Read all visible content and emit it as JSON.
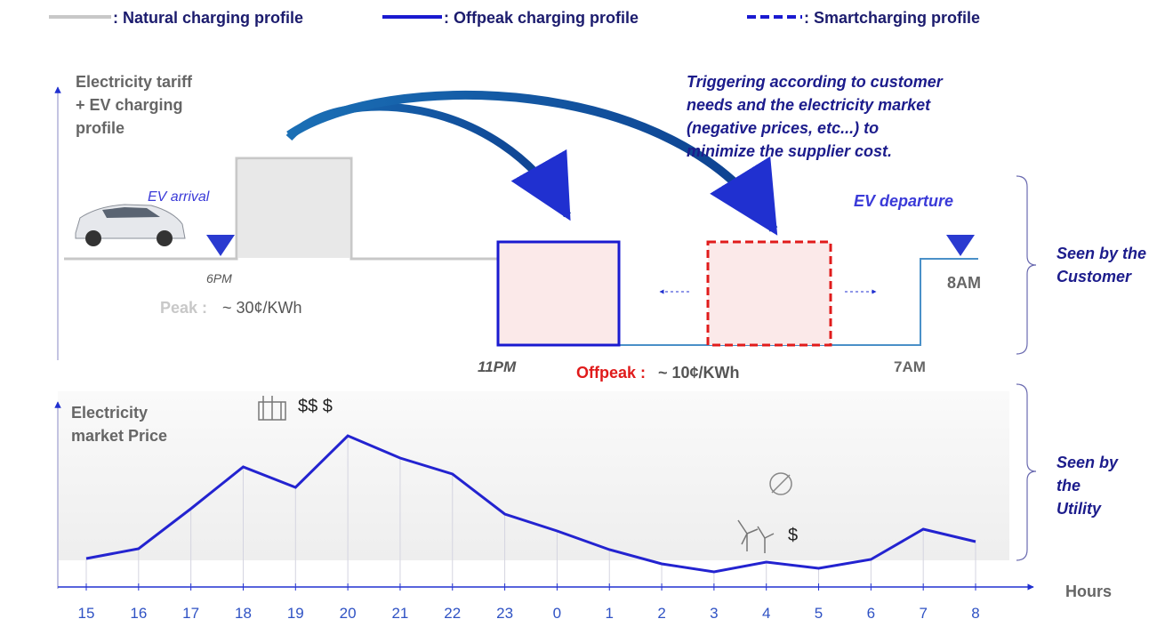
{
  "legend": [
    {
      "label": ": Natural charging profile"
    },
    {
      "label": ": Offpeak charging profile"
    },
    {
      "label": ": Smartcharging profile"
    }
  ],
  "tariff": {
    "axis_label_lines": [
      "Electricity tariff",
      "+ EV charging",
      "profile"
    ],
    "ev_arrival": "EV arrival",
    "arrival_time": "6PM",
    "peak_label": "Peak :",
    "peak_value": "~  30¢/KWh",
    "annotation_lines": [
      "Triggering according to customer",
      "needs and the electricity market",
      "(negative prices, etc...) to",
      "minimize the supplier cost."
    ],
    "ev_departure": "EV departure",
    "departure_time": "8AM",
    "offpeak_start": "11PM",
    "offpeak_end": "7AM",
    "offpeak_label": "Offpeak :",
    "offpeak_value": "~ 10¢/KWh",
    "customer_note_lines": [
      "Seen by the",
      "Customer"
    ]
  },
  "market_price": {
    "label_lines": [
      "Electricity",
      "market Price"
    ],
    "peak_cost": "$$ $",
    "low_cost": "$",
    "x_label": "Hours",
    "categories": [
      "15",
      "16",
      "17",
      "18",
      "19",
      "20",
      "21",
      "22",
      "23",
      "0",
      "1",
      "2",
      "3",
      "4",
      "5",
      "6",
      "7",
      "8"
    ],
    "values": [
      32,
      43,
      88,
      135,
      112,
      170,
      145,
      127,
      82,
      63,
      42,
      26,
      17,
      28,
      21,
      31,
      65,
      51
    ],
    "ylim": [
      0,
      180
    ],
    "color": "#2323d0",
    "utility_note_lines": [
      "Seen by",
      "the",
      "Utility"
    ]
  }
}
